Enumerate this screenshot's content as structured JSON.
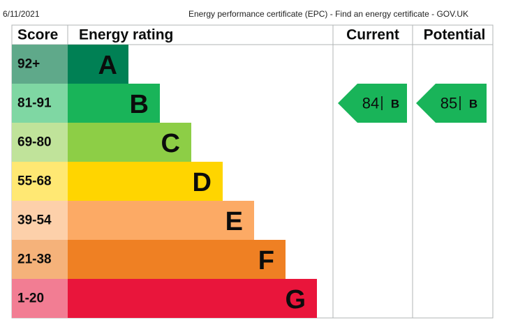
{
  "header": {
    "date": "6/11/2021",
    "title": "Energy performance certificate (EPC) - Find an energy certificate - GOV.UK"
  },
  "table": {
    "headers": [
      "Score",
      "Energy rating",
      "Current",
      "Potential"
    ],
    "bands": [
      {
        "score": "92+",
        "letter": "A"
      },
      {
        "score": "81-91",
        "letter": "B"
      },
      {
        "score": "69-80",
        "letter": "C"
      },
      {
        "score": "55-68",
        "letter": "D"
      },
      {
        "score": "39-54",
        "letter": "E"
      },
      {
        "score": "21-38",
        "letter": "F"
      },
      {
        "score": "1-20",
        "letter": "G"
      }
    ],
    "current": {
      "score": 84,
      "letter": "B"
    },
    "potential": {
      "score": 85,
      "letter": "B"
    }
  }
}
